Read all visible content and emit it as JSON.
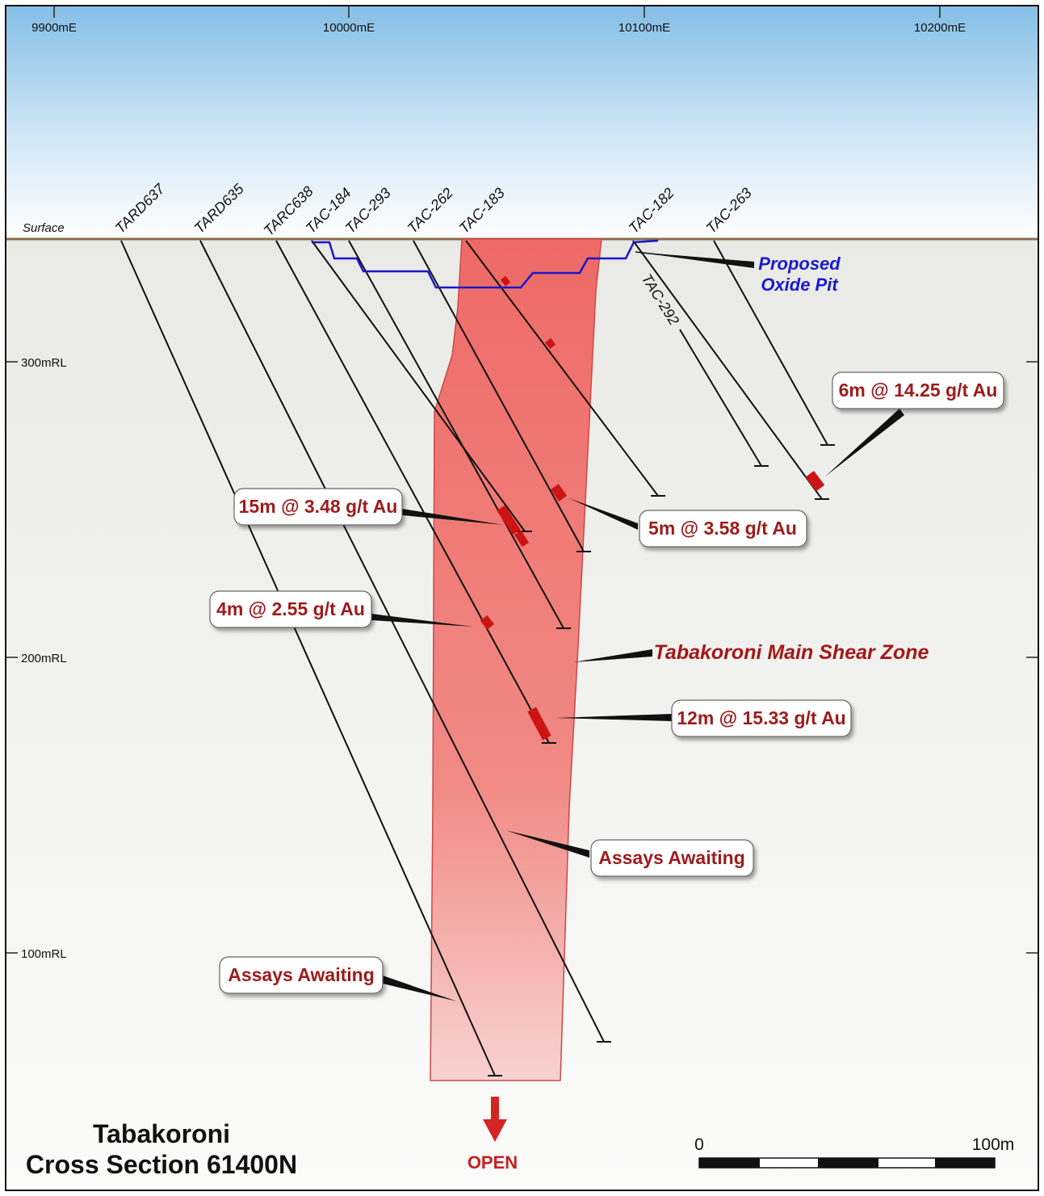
{
  "eastings": [
    "9900mE",
    "10000mE",
    "10100mE",
    "10200mE"
  ],
  "rls": [
    "300mRL",
    "200mRL",
    "100mRL"
  ],
  "surface_label": "Surface",
  "holes": {
    "tard637": "TARD637",
    "tard635": "TARD635",
    "tarc638": "TARC638",
    "tac184": "TAC-184",
    "tac293": "TAC-293",
    "tac262": "TAC-262",
    "tac183": "TAC-183",
    "tac182": "TAC-182",
    "tac263": "TAC-263",
    "tac292": "TAC-292"
  },
  "pit_label": [
    "Proposed",
    "Oxide Pit"
  ],
  "callouts": {
    "c1": "6m @ 14.25 g/t Au",
    "c2": "15m @ 3.48 g/t Au",
    "c3": "5m @ 3.58 g/t Au",
    "c4": "4m @ 2.55 g/t Au",
    "c5": "12m @ 15.33 g/t Au",
    "c6": "Assays Awaiting",
    "c7": "Assays Awaiting"
  },
  "shear_zone_label": "Tabakoroni Main Shear Zone",
  "open_label": "OPEN",
  "title": [
    "Tabakoroni",
    "Cross Section 61400N"
  ],
  "scale": {
    "start": "0",
    "end": "100m"
  },
  "colors": {
    "sky_top": "#8ec3e8",
    "ground": "#ececea",
    "shear": "#ef6e6a",
    "intercept": "#cc1414",
    "pit": "#1818c8",
    "callout_text": "#9e1b1b"
  }
}
